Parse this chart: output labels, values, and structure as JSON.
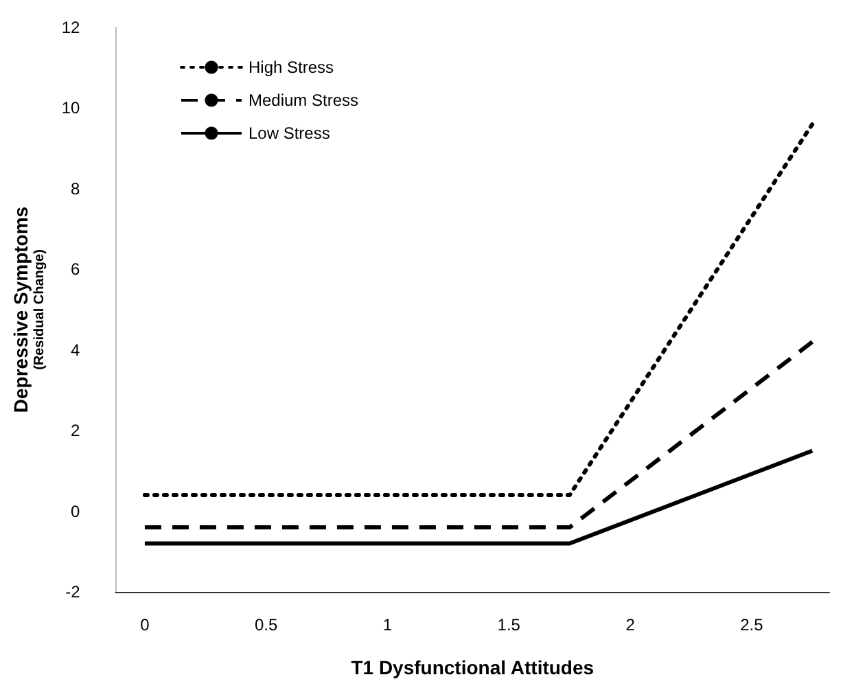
{
  "chart_data": {
    "type": "line",
    "xlabel": "T1 Dysfunctional Attitudes",
    "ylabel": "Depressive Symptoms\n(Residual Change)",
    "x": [
      0,
      1.75,
      2.75
    ],
    "series": [
      {
        "name": "High Stress",
        "color": "#000000",
        "line_style": "dotted",
        "values": [
          0.4,
          0.4,
          9.6
        ]
      },
      {
        "name": "Medium Stress",
        "color": "#000000",
        "line_style": "dashed",
        "values": [
          -0.4,
          -0.4,
          4.2
        ]
      },
      {
        "name": "Low Stress",
        "color": "#000000",
        "line_style": "solid",
        "values": [
          -0.8,
          -0.8,
          1.5
        ]
      }
    ],
    "xlim": [
      -0.12,
      2.82
    ],
    "xticks": [
      0,
      0.5,
      1,
      1.5,
      2,
      2.5
    ],
    "ylim": [
      -2,
      12
    ],
    "yticks": [
      -2,
      0,
      2,
      4,
      6,
      8,
      10,
      12
    ],
    "grid": false,
    "legend": "top left",
    "marker": "none"
  }
}
